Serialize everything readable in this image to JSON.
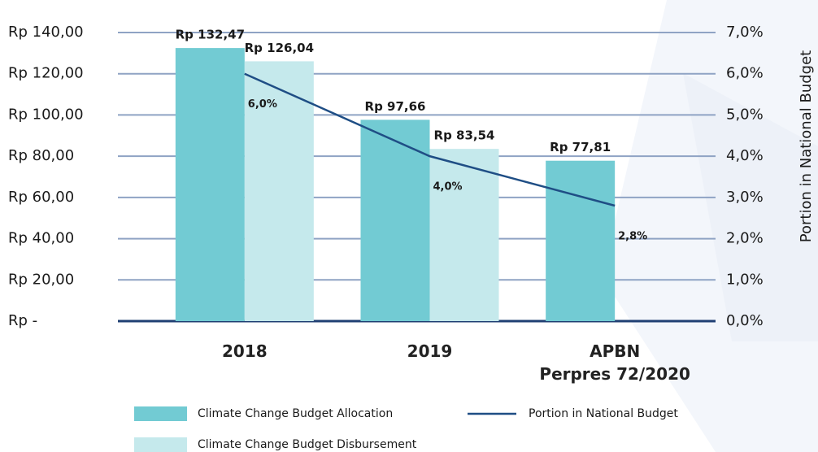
{
  "chart_data": {
    "type": "bar",
    "categories": [
      "2018",
      "2019",
      "APBN\nPerpres 72/2020"
    ],
    "series": [
      {
        "name": "Climate Change Budget Allocation",
        "color": "#72cbd3",
        "values": [
          132.47,
          97.66,
          77.81
        ],
        "value_labels": [
          "Rp 132,47",
          "Rp 97,66",
          "Rp 77,81"
        ]
      },
      {
        "name": "Climate Change Budget Disbursement",
        "color": "#c5e9ec",
        "values": [
          126.04,
          83.54,
          null
        ],
        "value_labels": [
          "Rp 126,04",
          "Rp 83,54",
          null
        ]
      },
      {
        "name": "Portion in National Budget",
        "type": "line",
        "axis": "y2",
        "color": "#1f4e85",
        "values": [
          6.0,
          4.0,
          2.8
        ],
        "value_labels": [
          "6,0%",
          "4,0%",
          "2,8%"
        ]
      }
    ],
    "y2_label": "Portion in National Budget",
    "ylim": [
      0,
      140
    ],
    "yticks": [
      {
        "value": 0,
        "label": "Rp -"
      },
      {
        "value": 20,
        "label": "Rp 20,00"
      },
      {
        "value": 40,
        "label": "Rp 40,00"
      },
      {
        "value": 60,
        "label": "Rp 60,00"
      },
      {
        "value": 80,
        "label": "Rp 80,00"
      },
      {
        "value": 100,
        "label": "Rp 100,00"
      },
      {
        "value": 120,
        "label": "Rp 120,00"
      },
      {
        "value": 140,
        "label": "Rp 140,00"
      }
    ],
    "y2lim": [
      0,
      7
    ],
    "y2ticks": [
      {
        "value": 0,
        "label": "0,0%"
      },
      {
        "value": 1,
        "label": "1,0%"
      },
      {
        "value": 2,
        "label": "2,0%"
      },
      {
        "value": 3,
        "label": "3,0%"
      },
      {
        "value": 4,
        "label": "4,0%"
      },
      {
        "value": 5,
        "label": "5,0%"
      },
      {
        "value": 6,
        "label": "6,0%"
      },
      {
        "value": 7,
        "label": "7,0%"
      }
    ],
    "grid": true
  }
}
